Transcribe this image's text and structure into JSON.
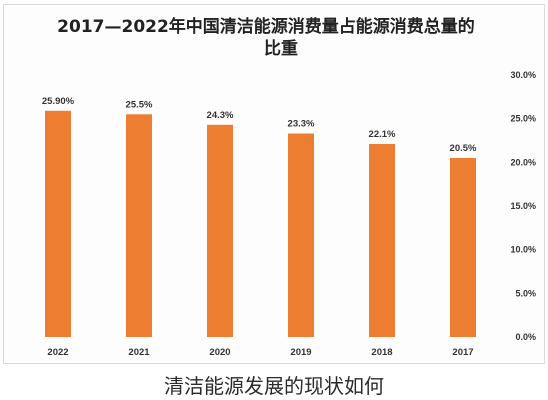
{
  "chart_data": {
    "type": "bar",
    "title": "2017—2022年中国清洁能源消费量占能源消费总量的比重",
    "title_lines": [
      "2017—2022年中国清洁能源消费量占能源消费总量的",
      "比重"
    ],
    "categories": [
      "2022",
      "2021",
      "2020",
      "2019",
      "2018",
      "2017"
    ],
    "values": [
      25.9,
      25.5,
      24.3,
      23.3,
      22.1,
      20.5
    ],
    "data_labels": [
      "25.90%",
      "25.5%",
      "24.3%",
      "23.3%",
      "22.1%",
      "20.5%"
    ],
    "y_ticks": [
      "30.0%",
      "25.0%",
      "20.0%",
      "15.0%",
      "10.0%",
      "5.0%",
      "0.0%"
    ],
    "ylim": [
      0,
      30
    ],
    "y_axis_position": "right",
    "grid": false,
    "bar_color": "#ed7d31"
  },
  "caption": "清洁能源发展的现状如何"
}
